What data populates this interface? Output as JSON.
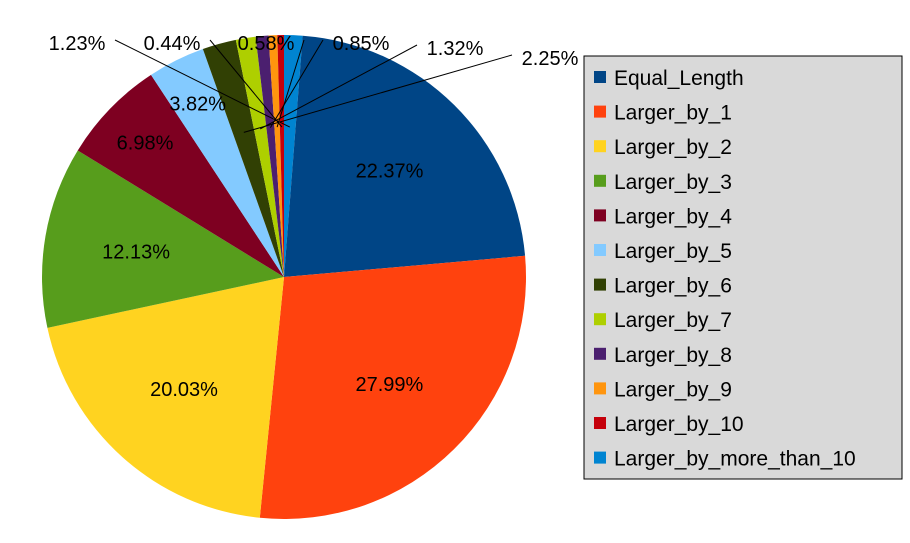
{
  "chart_data": {
    "type": "pie",
    "title": "",
    "categories": [
      "Equal_Length",
      "Larger_by_1",
      "Larger_by_2",
      "Larger_by_3",
      "Larger_by_4",
      "Larger_by_5",
      "Larger_by_6",
      "Larger_by_7",
      "Larger_by_8",
      "Larger_by_9",
      "Larger_by_10",
      "Larger_by_more_than_10"
    ],
    "values": [
      22.37,
      27.99,
      20.03,
      12.13,
      6.98,
      3.82,
      2.25,
      1.32,
      0.85,
      0.58,
      0.44,
      1.23
    ],
    "labels": [
      "22.37%",
      "27.99%",
      "20.03%",
      "12.13%",
      "6.98%",
      "3.82%",
      "2.25%",
      "1.32%",
      "0.85%",
      "0.58%",
      "0.44%",
      "1.23%"
    ],
    "colors": [
      "#004586",
      "#ff420e",
      "#ffd320",
      "#579d1c",
      "#7e0021",
      "#83caff",
      "#314004",
      "#aecf00",
      "#4b1f6f",
      "#ff950e",
      "#c5000b",
      "#0084d1"
    ],
    "legend_position": "right",
    "start_angle": "12 o'clock",
    "direction": "clockwise, starting with the last category"
  }
}
